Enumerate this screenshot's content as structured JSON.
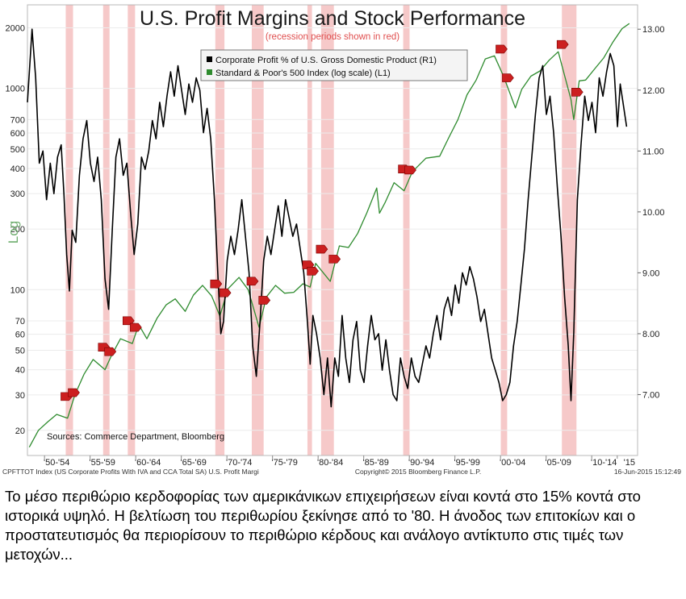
{
  "chart_data": {
    "type": "line",
    "title": "U.S. Profit Margins and Stock Performance",
    "subtitle": "(recession periods shown in red)",
    "left_axis_label": "Log",
    "left_axis": {
      "scale": "log",
      "range": [
        15,
        2600
      ],
      "ticks": [
        20,
        30,
        40,
        50,
        60,
        70,
        100,
        200,
        300,
        400,
        500,
        600,
        700,
        1000,
        2000
      ]
    },
    "right_axis": {
      "scale": "linear",
      "range": [
        6.0,
        13.4
      ],
      "ticks": [
        "7.00",
        "8.00",
        "9.00",
        "10.00",
        "11.00",
        "12.00",
        "13.00"
      ]
    },
    "x_range": [
      1949.3,
      2016.2
    ],
    "x_tick_labels": [
      {
        "label": "'50-'54",
        "x": 1952.5
      },
      {
        "label": "'55-'59",
        "x": 1957.5
      },
      {
        "label": "'60-'64",
        "x": 1962.5
      },
      {
        "label": "'65-'69",
        "x": 1967.5
      },
      {
        "label": "'70-'74",
        "x": 1972.5
      },
      {
        "label": "'75-'79",
        "x": 1977.5
      },
      {
        "label": "'80-'84",
        "x": 1982.5
      },
      {
        "label": "'85-'89",
        "x": 1987.5
      },
      {
        "label": "'90-'94",
        "x": 1992.5
      },
      {
        "label": "'95-'99",
        "x": 1997.5
      },
      {
        "label": "'00-'04",
        "x": 2002.5
      },
      {
        "label": "'05-'09",
        "x": 2007.5
      },
      {
        "label": "'10-'14",
        "x": 2012.5
      },
      {
        "label": "'15",
        "x": 2015.3
      }
    ],
    "recessions": [
      [
        1953.5,
        1954.3
      ],
      [
        1957.6,
        1958.3
      ],
      [
        1960.3,
        1961.1
      ],
      [
        1969.9,
        1970.9
      ],
      [
        1973.9,
        1975.2
      ],
      [
        1980.0,
        1980.5
      ],
      [
        1981.5,
        1982.9
      ],
      [
        1990.5,
        1991.2
      ],
      [
        2001.2,
        2001.9
      ],
      [
        2007.9,
        2009.5
      ]
    ],
    "legend": [
      "Corporate Profit % of U.S. Gross Domestic Product (R1)",
      "Standard & Poor's 500 Index (log scale) (L1)"
    ],
    "legend_placement": "top-center",
    "series": [
      {
        "name": "Standard & Poor's 500 Index (log scale) (L1)",
        "color": "#2e8b2e",
        "axis": "left",
        "points": [
          [
            1949.5,
            16.5
          ],
          [
            1950.5,
            20
          ],
          [
            1951.5,
            22
          ],
          [
            1952.5,
            24
          ],
          [
            1953.7,
            23
          ],
          [
            1954.5,
            30
          ],
          [
            1955.5,
            38
          ],
          [
            1956.5,
            45
          ],
          [
            1957.8,
            40
          ],
          [
            1958.5,
            47
          ],
          [
            1959.5,
            57
          ],
          [
            1960.8,
            54
          ],
          [
            1961.5,
            67
          ],
          [
            1962.4,
            57
          ],
          [
            1963.5,
            72
          ],
          [
            1964.5,
            84
          ],
          [
            1965.5,
            90
          ],
          [
            1966.6,
            78
          ],
          [
            1967.5,
            94
          ],
          [
            1968.5,
            105
          ],
          [
            1969.5,
            93
          ],
          [
            1970.4,
            74
          ],
          [
            1971.3,
            101
          ],
          [
            1972.5,
            115
          ],
          [
            1973.5,
            100
          ],
          [
            1974.7,
            65
          ],
          [
            1975.5,
            92
          ],
          [
            1976.5,
            105
          ],
          [
            1977.5,
            96
          ],
          [
            1978.5,
            97
          ],
          [
            1979.5,
            107
          ],
          [
            1980.3,
            103
          ],
          [
            1980.9,
            135
          ],
          [
            1982.5,
            110
          ],
          [
            1983.5,
            165
          ],
          [
            1984.5,
            162
          ],
          [
            1985.5,
            190
          ],
          [
            1986.5,
            240
          ],
          [
            1987.6,
            320
          ],
          [
            1987.9,
            240
          ],
          [
            1988.5,
            270
          ],
          [
            1989.5,
            340
          ],
          [
            1990.6,
            310
          ],
          [
            1991.5,
            385
          ],
          [
            1993.0,
            450
          ],
          [
            1994.5,
            460
          ],
          [
            1995.5,
            570
          ],
          [
            1996.5,
            700
          ],
          [
            1997.5,
            930
          ],
          [
            1998.5,
            1100
          ],
          [
            1999.5,
            1400
          ],
          [
            2000.5,
            1450
          ],
          [
            2001.5,
            1150
          ],
          [
            2002.8,
            800
          ],
          [
            2003.5,
            990
          ],
          [
            2004.5,
            1150
          ],
          [
            2005.5,
            1220
          ],
          [
            2006.5,
            1380
          ],
          [
            2007.5,
            1520
          ],
          [
            2008.9,
            880
          ],
          [
            2009.2,
            700
          ],
          [
            2009.8,
            1090
          ],
          [
            2010.5,
            1100
          ],
          [
            2011.5,
            1250
          ],
          [
            2012.5,
            1420
          ],
          [
            2013.5,
            1700
          ],
          [
            2014.5,
            1980
          ],
          [
            2015.3,
            2100
          ]
        ]
      },
      {
        "name": "Corporate Profit % of U.S. Gross Domestic Product (R1)",
        "color": "#000000",
        "axis": "right",
        "points": [
          [
            1949.3,
            11.8
          ],
          [
            1949.8,
            13.0
          ],
          [
            1950.2,
            12.2
          ],
          [
            1950.6,
            10.8
          ],
          [
            1951.0,
            11.0
          ],
          [
            1951.4,
            10.2
          ],
          [
            1951.8,
            10.8
          ],
          [
            1952.2,
            10.3
          ],
          [
            1952.6,
            10.9
          ],
          [
            1953.0,
            11.1
          ],
          [
            1953.3,
            10.3
          ],
          [
            1953.6,
            9.3
          ],
          [
            1953.9,
            8.7
          ],
          [
            1954.2,
            9.7
          ],
          [
            1954.6,
            9.5
          ],
          [
            1955.0,
            10.6
          ],
          [
            1955.4,
            11.2
          ],
          [
            1955.8,
            11.5
          ],
          [
            1956.2,
            10.8
          ],
          [
            1956.6,
            10.5
          ],
          [
            1957.0,
            10.9
          ],
          [
            1957.4,
            10.2
          ],
          [
            1957.8,
            8.9
          ],
          [
            1958.2,
            8.4
          ],
          [
            1958.6,
            9.7
          ],
          [
            1959.0,
            10.9
          ],
          [
            1959.4,
            11.2
          ],
          [
            1959.8,
            10.6
          ],
          [
            1960.2,
            10.8
          ],
          [
            1960.6,
            10.0
          ],
          [
            1961.0,
            9.3
          ],
          [
            1961.4,
            9.8
          ],
          [
            1961.8,
            10.9
          ],
          [
            1962.2,
            10.7
          ],
          [
            1962.6,
            11.0
          ],
          [
            1963.0,
            11.5
          ],
          [
            1963.4,
            11.2
          ],
          [
            1963.8,
            11.8
          ],
          [
            1964.2,
            11.4
          ],
          [
            1964.6,
            11.9
          ],
          [
            1965.0,
            12.3
          ],
          [
            1965.4,
            11.9
          ],
          [
            1965.8,
            12.4
          ],
          [
            1966.2,
            12.0
          ],
          [
            1966.6,
            11.6
          ],
          [
            1967.0,
            12.1
          ],
          [
            1967.4,
            11.8
          ],
          [
            1967.8,
            12.2
          ],
          [
            1968.2,
            12.0
          ],
          [
            1968.6,
            11.3
          ],
          [
            1969.0,
            11.7
          ],
          [
            1969.4,
            11.2
          ],
          [
            1969.8,
            10.2
          ],
          [
            1970.2,
            8.9
          ],
          [
            1970.5,
            8.0
          ],
          [
            1970.8,
            8.2
          ],
          [
            1971.2,
            9.2
          ],
          [
            1971.6,
            9.6
          ],
          [
            1972.0,
            9.3
          ],
          [
            1972.4,
            9.7
          ],
          [
            1972.8,
            10.2
          ],
          [
            1973.2,
            9.6
          ],
          [
            1973.6,
            9.0
          ],
          [
            1974.0,
            7.8
          ],
          [
            1974.4,
            7.3
          ],
          [
            1974.8,
            8.2
          ],
          [
            1975.2,
            9.2
          ],
          [
            1975.6,
            9.6
          ],
          [
            1976.0,
            9.3
          ],
          [
            1976.4,
            9.7
          ],
          [
            1976.8,
            10.1
          ],
          [
            1977.2,
            9.6
          ],
          [
            1977.6,
            10.2
          ],
          [
            1978.0,
            9.9
          ],
          [
            1978.4,
            9.6
          ],
          [
            1978.8,
            9.8
          ],
          [
            1979.2,
            9.4
          ],
          [
            1979.6,
            9.0
          ],
          [
            1980.0,
            8.2
          ],
          [
            1980.3,
            7.5
          ],
          [
            1980.6,
            8.3
          ],
          [
            1981.0,
            8.0
          ],
          [
            1981.4,
            7.6
          ],
          [
            1981.8,
            7.0
          ],
          [
            1982.2,
            7.6
          ],
          [
            1982.6,
            6.8
          ],
          [
            1983.0,
            7.6
          ],
          [
            1983.4,
            7.3
          ],
          [
            1983.8,
            8.3
          ],
          [
            1984.2,
            7.6
          ],
          [
            1984.6,
            7.2
          ],
          [
            1985.0,
            7.9
          ],
          [
            1985.4,
            8.2
          ],
          [
            1985.8,
            7.4
          ],
          [
            1986.2,
            7.2
          ],
          [
            1986.6,
            7.8
          ],
          [
            1987.0,
            8.3
          ],
          [
            1987.4,
            7.9
          ],
          [
            1987.8,
            8.0
          ],
          [
            1988.2,
            7.4
          ],
          [
            1988.6,
            7.9
          ],
          [
            1989.0,
            7.4
          ],
          [
            1989.4,
            7.0
          ],
          [
            1989.8,
            6.9
          ],
          [
            1990.2,
            7.6
          ],
          [
            1990.6,
            7.3
          ],
          [
            1991.0,
            7.1
          ],
          [
            1991.4,
            7.6
          ],
          [
            1991.8,
            7.3
          ],
          [
            1992.2,
            7.2
          ],
          [
            1992.6,
            7.5
          ],
          [
            1993.0,
            7.8
          ],
          [
            1993.4,
            7.6
          ],
          [
            1993.8,
            8.0
          ],
          [
            1994.2,
            8.3
          ],
          [
            1994.6,
            7.9
          ],
          [
            1995.0,
            8.4
          ],
          [
            1995.4,
            8.6
          ],
          [
            1995.8,
            8.3
          ],
          [
            1996.2,
            8.8
          ],
          [
            1996.6,
            8.5
          ],
          [
            1997.0,
            9.0
          ],
          [
            1997.4,
            8.8
          ],
          [
            1997.8,
            9.1
          ],
          [
            1998.2,
            8.9
          ],
          [
            1998.6,
            8.6
          ],
          [
            1999.0,
            8.2
          ],
          [
            1999.4,
            8.4
          ],
          [
            1999.8,
            8.0
          ],
          [
            2000.2,
            7.6
          ],
          [
            2000.6,
            7.4
          ],
          [
            2001.0,
            7.2
          ],
          [
            2001.4,
            6.9
          ],
          [
            2001.8,
            7.0
          ],
          [
            2002.2,
            7.2
          ],
          [
            2002.6,
            7.8
          ],
          [
            2003.0,
            8.2
          ],
          [
            2003.4,
            8.8
          ],
          [
            2003.8,
            9.4
          ],
          [
            2004.2,
            10.2
          ],
          [
            2004.6,
            10.9
          ],
          [
            2005.0,
            11.6
          ],
          [
            2005.4,
            12.2
          ],
          [
            2005.8,
            12.4
          ],
          [
            2006.2,
            11.6
          ],
          [
            2006.6,
            11.9
          ],
          [
            2007.0,
            11.3
          ],
          [
            2007.4,
            10.4
          ],
          [
            2007.8,
            9.6
          ],
          [
            2008.2,
            8.6
          ],
          [
            2008.6,
            7.8
          ],
          [
            2008.9,
            6.9
          ],
          [
            2009.2,
            8.0
          ],
          [
            2009.6,
            10.2
          ],
          [
            2010.0,
            11.1
          ],
          [
            2010.4,
            11.9
          ],
          [
            2010.8,
            11.5
          ],
          [
            2011.2,
            11.8
          ],
          [
            2011.6,
            11.3
          ],
          [
            2012.0,
            12.2
          ],
          [
            2012.4,
            11.9
          ],
          [
            2012.8,
            12.3
          ],
          [
            2013.2,
            12.6
          ],
          [
            2013.6,
            12.4
          ],
          [
            2014.0,
            11.4
          ],
          [
            2014.3,
            12.1
          ],
          [
            2014.6,
            11.8
          ],
          [
            2015.0,
            11.4
          ]
        ]
      }
    ]
  },
  "sources_note": "Sources: Commerce Department, Bloomberg",
  "footer": {
    "left": "CPFTTOT Index (US Corporate Profits With IVA and CCA Total SA) U.S. Profit Margi",
    "center": "Copyright© 2015 Bloomberg Finance L.P.",
    "right": "16-Jun-2015 15:12:49"
  },
  "colors": {
    "recession_band": "#f4c0c0",
    "profit_line": "#000000",
    "sp500_line": "#2e8b2e",
    "subtitle": "#e05050",
    "marker": "#cc1f1f"
  },
  "caption": "Το μέσο περιθώριο κερδοφορίας των αμερικάνικων επιχειρήσεων είναι κοντά στο 15% κοντά στο ιστορικά υψηλό. Η βελτίωση του περιθωρίου ξεκίνησε από το '80. Η άνοδος των επιτοκίων και ο προστατευτισμός θα περιορίσουν το περιθώριο κέρδους και ανάλογο αντίκτυπο στις τιμές των μετοχών..."
}
